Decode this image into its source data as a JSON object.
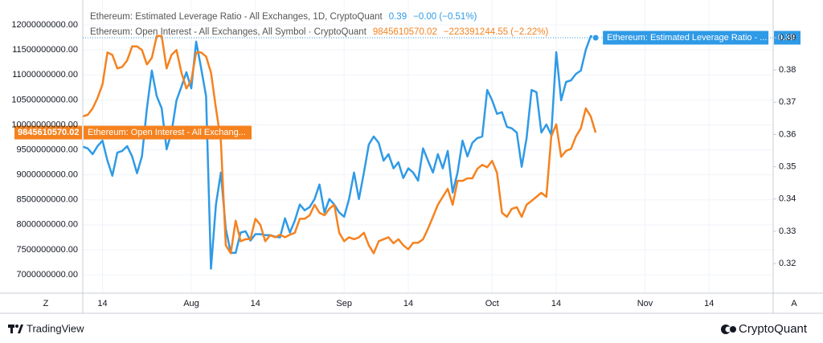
{
  "chart_data": {
    "type": "line",
    "header": [
      {
        "name": "Ethereum: Estimated Leverage Ratio - All Exchanges, 1D, CryptoQuant",
        "value": "0.39",
        "change": "−0.00 (−0.51%)"
      },
      {
        "name": "Ethereum: Open Interest - All Exchanges, All Symbol · CryptoQuant",
        "value": "9845610570.02",
        "change": "−223391244.55 (−2.22%)"
      }
    ],
    "categories": [
      null,
      null,
      null,
      null,
      "14",
      null,
      null,
      null,
      null,
      null,
      null,
      null,
      null,
      null,
      null,
      null,
      null,
      null,
      null,
      null,
      null,
      null,
      "Aug",
      null,
      null,
      null,
      null,
      null,
      null,
      null,
      null,
      null,
      null,
      null,
      null,
      "14",
      null,
      null,
      null,
      null,
      null,
      null,
      null,
      null,
      null,
      null,
      null,
      null,
      null,
      null,
      null,
      null,
      null,
      "Sep",
      null,
      null,
      null,
      null,
      null,
      null,
      null,
      null,
      null,
      null,
      null,
      null,
      "14",
      null,
      null,
      null,
      null,
      null,
      null,
      null,
      null,
      null,
      null,
      null,
      null,
      null,
      null,
      null,
      null,
      "Oct",
      null,
      null,
      null,
      null,
      null,
      null,
      null,
      null,
      null,
      null,
      null,
      null,
      "14",
      null,
      null,
      null,
      null,
      null,
      null,
      null,
      null,
      null,
      null,
      null,
      null,
      null,
      null,
      null,
      null,
      null,
      "Nov",
      null,
      null,
      null,
      null,
      null,
      null,
      null,
      null,
      null,
      null,
      null,
      null,
      "14",
      null,
      null,
      null,
      null,
      null,
      null,
      null,
      null,
      null,
      null,
      null,
      null,
      null
    ],
    "series": [
      {
        "name": "Ethereum: Estimated Leverage Ratio - ...",
        "color": "#2f9ae6",
        "axis": "y2",
        "price_label": "0.39",
        "values": [
          0.3562,
          0.3557,
          0.3539,
          0.3564,
          0.3581,
          0.3519,
          0.3472,
          0.3544,
          0.3549,
          0.3564,
          0.3532,
          0.348,
          0.3532,
          0.3681,
          0.3798,
          0.3719,
          0.3681,
          0.3554,
          0.3606,
          0.3706,
          0.3748,
          0.3793,
          0.3743,
          0.3888,
          0.3805,
          0.3719,
          0.3184,
          0.3383,
          0.3482,
          0.3308,
          0.3233,
          0.3233,
          0.3296,
          0.33,
          0.3271,
          0.3291,
          0.3291,
          0.3288,
          0.3288,
          0.3283,
          0.3281,
          0.334,
          0.3296,
          0.3333,
          0.3383,
          0.3365,
          0.3375,
          0.34,
          0.3445,
          0.3358,
          0.34,
          0.3383,
          0.3358,
          0.3345,
          0.34,
          0.3482,
          0.34,
          0.3482,
          0.3569,
          0.3594,
          0.3574,
          0.3519,
          0.3539,
          0.3495,
          0.3514,
          0.3465,
          0.3495,
          0.3482,
          0.3457,
          0.3557,
          0.3519,
          0.3482,
          0.3539,
          0.3495,
          0.3549,
          0.342,
          0.3482,
          0.3581,
          0.3532,
          0.3574,
          0.3589,
          0.3594,
          0.3738,
          0.3706,
          0.3664,
          0.3669,
          0.3624,
          0.3619,
          0.3606,
          0.35,
          0.3589,
          0.3738,
          0.3731,
          0.3606,
          0.3631,
          0.3599,
          0.3855,
          0.3706,
          0.3763,
          0.3768,
          0.3788,
          0.3798,
          0.3863,
          0.3905,
          0.39,
          null,
          null,
          null,
          null,
          null,
          null,
          null,
          null,
          null,
          null,
          null,
          null,
          null,
          null,
          null,
          null,
          null,
          null,
          null,
          null,
          null,
          null,
          null,
          null,
          null,
          null,
          null,
          null,
          null,
          null,
          null,
          null,
          null,
          null,
          null,
          null
        ]
      },
      {
        "name": "Ethereum: Open Interest - All Exchang...",
        "color": "#f5821f",
        "axis": "y",
        "price_label": "9845610570.02",
        "values": [
          10170000000,
          10200000000,
          10330000000,
          10540000000,
          10810000000,
          11450000000,
          11400000000,
          11130000000,
          11160000000,
          11290000000,
          11570000000,
          11570000000,
          11500000000,
          11210000000,
          11340000000,
          11780000000,
          11780000000,
          11130000000,
          11400000000,
          11500000000,
          11050000000,
          10730000000,
          10890000000,
          11450000000,
          11450000000,
          11370000000,
          11050000000,
          10330000000,
          9680000000,
          7590000000,
          7430000000,
          8080000000,
          7670000000,
          7710000000,
          7710000000,
          8120000000,
          8000000000,
          7670000000,
          7790000000,
          7750000000,
          7800000000,
          7750000000,
          7800000000,
          7840000000,
          8120000000,
          8120000000,
          8190000000,
          8400000000,
          8240000000,
          8190000000,
          8320000000,
          8400000000,
          7840000000,
          7670000000,
          7750000000,
          7710000000,
          7750000000,
          7840000000,
          7590000000,
          7430000000,
          7670000000,
          7710000000,
          7750000000,
          7630000000,
          7710000000,
          7590000000,
          7510000000,
          7640000000,
          7640000000,
          7710000000,
          7920000000,
          8160000000,
          8400000000,
          8560000000,
          8720000000,
          8400000000,
          8880000000,
          8880000000,
          8930000000,
          8930000000,
          9120000000,
          9200000000,
          9150000000,
          9280000000,
          9040000000,
          8240000000,
          8160000000,
          8320000000,
          8350000000,
          8160000000,
          8400000000,
          8480000000,
          8560000000,
          8640000000,
          8560000000,
          9770000000,
          10010000000,
          9360000000,
          9480000000,
          9520000000,
          9770000000,
          9930000000,
          10330000000,
          10170000000,
          9845610570.02,
          null,
          null,
          null,
          null,
          null,
          null,
          null,
          null,
          null,
          null,
          null,
          null,
          null,
          null,
          null,
          null,
          null,
          null,
          null,
          null,
          null,
          null,
          null,
          null,
          null,
          null,
          null,
          null,
          null,
          null,
          null,
          null,
          null,
          null,
          null,
          null
        ]
      }
    ],
    "ylim": [
      6630000000,
      12500000000
    ],
    "yticks": [
      {
        "value": 7000000000,
        "label": "7000000000.00"
      },
      {
        "value": 7500000000,
        "label": "7500000000.00"
      },
      {
        "value": 8000000000,
        "label": "8000000000.00"
      },
      {
        "value": 8500000000,
        "label": "8500000000.00"
      },
      {
        "value": 9000000000,
        "label": "9000000000.00"
      },
      {
        "value": 9500000000,
        "label": "9500000000.00"
      },
      {
        "value": 10000000000,
        "label": "10000000000.00"
      },
      {
        "value": 10500000000,
        "label": "10500000000.00"
      },
      {
        "value": 11000000000,
        "label": "11000000000.00"
      },
      {
        "value": 11500000000,
        "label": "11500000000.00"
      },
      {
        "value": 12000000000,
        "label": "12000000000.00"
      }
    ],
    "y2lim": [
      0.3108,
      0.4017
    ],
    "y2ticks": [
      0.32,
      0.33,
      0.34,
      0.35,
      0.36,
      0.37,
      0.38,
      0.39
    ],
    "grid": true,
    "buttons": [
      "Z",
      "A"
    ],
    "footer_left": "TradingView",
    "footer_right": "CryptoQuant"
  }
}
